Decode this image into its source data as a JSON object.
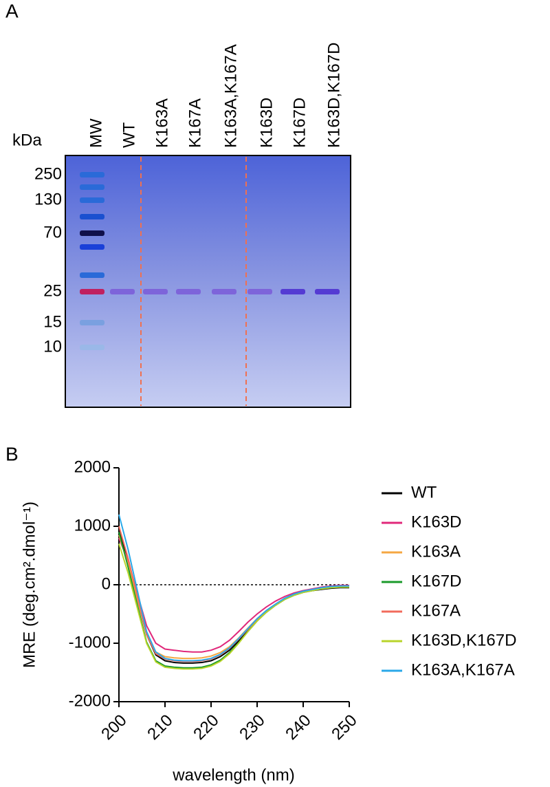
{
  "panels": [
    "A",
    "B"
  ],
  "gel": {
    "unit_label": "kDa",
    "lanes": [
      "MW",
      "WT",
      "K163A",
      "K167A",
      "K163A,K167A",
      "K163D",
      "K167D",
      "K163D,K167D"
    ],
    "mw_ticks": [
      250,
      130,
      70,
      25,
      15,
      10
    ]
  },
  "chart_data": {
    "type": "line",
    "xlabel": "wavelength (nm)",
    "ylabel": "MRE (deg.cm².dmol⁻¹)",
    "x": [
      200,
      202,
      204,
      206,
      208,
      210,
      212,
      214,
      216,
      218,
      220,
      222,
      224,
      226,
      228,
      230,
      232,
      234,
      236,
      238,
      240,
      242,
      244,
      246,
      248,
      250
    ],
    "xlim": [
      200,
      250
    ],
    "xticks": [
      200,
      210,
      220,
      230,
      240,
      250
    ],
    "ylim": [
      -2000,
      2000
    ],
    "yticks": [
      -2000,
      -1000,
      0,
      1000,
      2000
    ],
    "reference_line": 0,
    "series": [
      {
        "name": "WT",
        "color": "#000000",
        "values": [
          950,
          400,
          -250,
          -850,
          -1200,
          -1300,
          -1330,
          -1340,
          -1340,
          -1330,
          -1300,
          -1230,
          -1120,
          -960,
          -780,
          -610,
          -470,
          -350,
          -250,
          -180,
          -130,
          -100,
          -80,
          -60,
          -50,
          -50
        ]
      },
      {
        "name": "K163D",
        "color": "#e0287a",
        "values": [
          800,
          400,
          -150,
          -700,
          -1000,
          -1100,
          -1120,
          -1140,
          -1150,
          -1150,
          -1120,
          -1060,
          -950,
          -800,
          -640,
          -500,
          -380,
          -280,
          -200,
          -140,
          -100,
          -70,
          -40,
          -20,
          -10,
          -10
        ]
      },
      {
        "name": "K163A",
        "color": "#f5a742",
        "values": [
          850,
          350,
          -250,
          -850,
          -1150,
          -1230,
          -1250,
          -1260,
          -1260,
          -1250,
          -1220,
          -1160,
          -1060,
          -910,
          -740,
          -580,
          -450,
          -340,
          -240,
          -170,
          -120,
          -90,
          -60,
          -40,
          -30,
          -30
        ]
      },
      {
        "name": "K167D",
        "color": "#1a9a2a",
        "values": [
          900,
          300,
          -350,
          -980,
          -1300,
          -1390,
          -1410,
          -1420,
          -1420,
          -1410,
          -1370,
          -1290,
          -1160,
          -990,
          -800,
          -620,
          -470,
          -350,
          -250,
          -180,
          -130,
          -100,
          -70,
          -50,
          -40,
          -40
        ]
      },
      {
        "name": "K167A",
        "color": "#f26b5b",
        "values": [
          1000,
          450,
          -200,
          -850,
          -1180,
          -1270,
          -1300,
          -1310,
          -1310,
          -1300,
          -1270,
          -1200,
          -1090,
          -930,
          -760,
          -590,
          -450,
          -340,
          -240,
          -170,
          -120,
          -90,
          -60,
          -40,
          -30,
          -30
        ]
      },
      {
        "name": "K163D,K167D",
        "color": "#b8d42a",
        "values": [
          700,
          200,
          -400,
          -1000,
          -1320,
          -1410,
          -1430,
          -1440,
          -1440,
          -1430,
          -1390,
          -1310,
          -1180,
          -1000,
          -800,
          -620,
          -470,
          -350,
          -250,
          -180,
          -130,
          -100,
          -70,
          -50,
          -40,
          -40
        ]
      },
      {
        "name": "K163A,K167A",
        "color": "#2aa8e8",
        "values": [
          1200,
          600,
          -100,
          -800,
          -1150,
          -1260,
          -1290,
          -1300,
          -1300,
          -1290,
          -1260,
          -1190,
          -1080,
          -920,
          -750,
          -580,
          -440,
          -330,
          -230,
          -160,
          -110,
          -80,
          -50,
          -30,
          -20,
          -20
        ]
      }
    ]
  }
}
